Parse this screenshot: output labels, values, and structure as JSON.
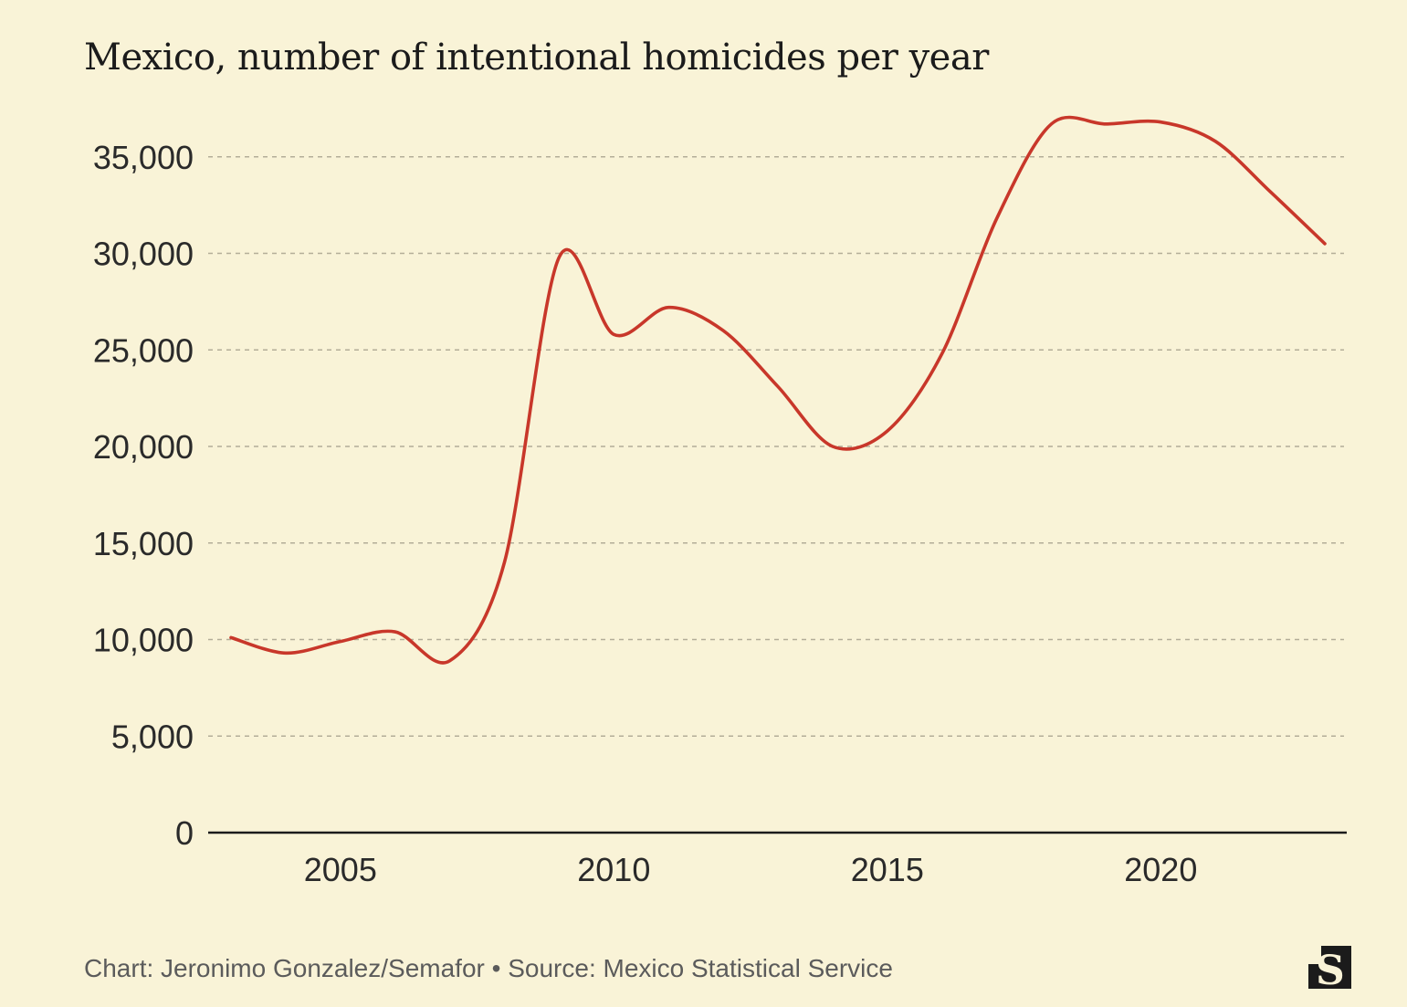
{
  "title": "Mexico, number of intentional homicides per year",
  "footer": {
    "credit": "Chart: Jeronimo Gonzalez/Semafor",
    "separator": "•",
    "source": "Source: Mexico Statistical Service"
  },
  "logo": {
    "label": "S",
    "icon": "semafor-logo-icon"
  },
  "colors": {
    "background": "#f9f3d7",
    "line": "#c8372a",
    "text": "#1b1b1b"
  },
  "chart_data": {
    "type": "line",
    "title": "Mexico, number of intentional homicides per year",
    "xlabel": "",
    "ylabel": "",
    "xlim": [
      2003,
      2023
    ],
    "ylim": [
      0,
      37000
    ],
    "x_ticks": [
      2005,
      2010,
      2015,
      2020
    ],
    "x_tick_labels": [
      "2005",
      "2010",
      "2015",
      "2020"
    ],
    "y_ticks": [
      0,
      5000,
      10000,
      15000,
      20000,
      25000,
      30000,
      35000
    ],
    "y_tick_labels": [
      "0",
      "5,000",
      "10,000",
      "15,000",
      "20,000",
      "25,000",
      "30,000",
      "35,000"
    ],
    "grid": true,
    "legend": "none",
    "series": [
      {
        "name": "Intentional homicides",
        "x": [
          2003,
          2004,
          2005,
          2006,
          2007,
          2008,
          2009,
          2010,
          2011,
          2012,
          2013,
          2014,
          2015,
          2016,
          2017,
          2018,
          2019,
          2020,
          2021,
          2022,
          2023
        ],
        "values": [
          10100,
          9300,
          9900,
          10400,
          8900,
          14000,
          29800,
          25800,
          27200,
          26000,
          23100,
          20000,
          20800,
          24800,
          31800,
          36700,
          36700,
          36800,
          35800,
          33200,
          30500
        ]
      }
    ]
  }
}
